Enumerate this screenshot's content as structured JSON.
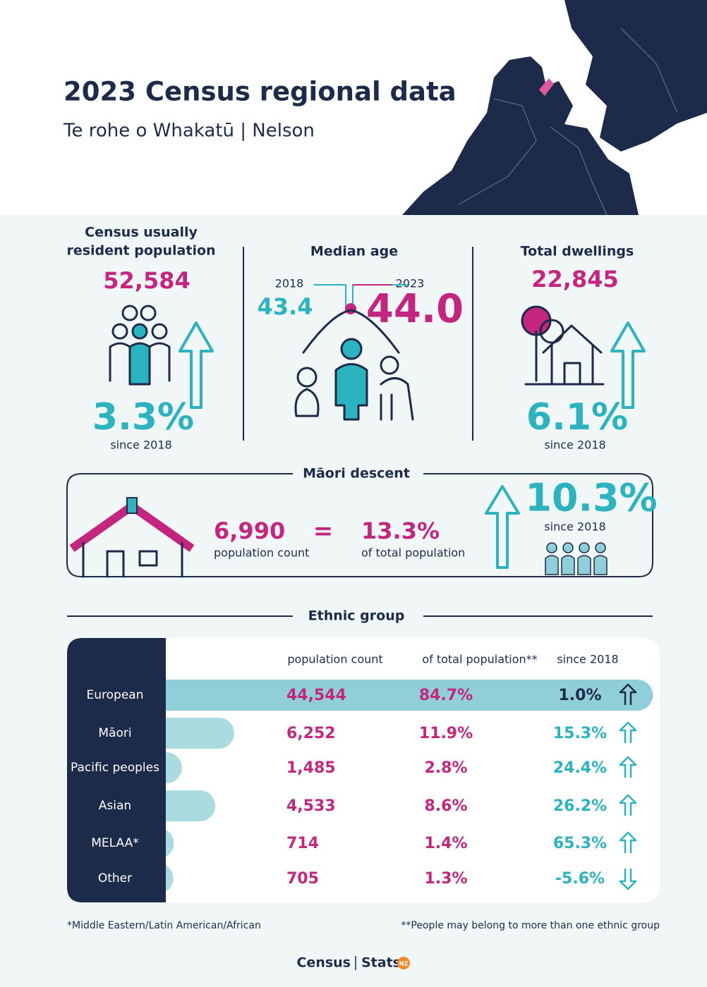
{
  "header": {
    "title": "2023 Census regional data",
    "subtitle": "Te rohe o Whakatū | Nelson"
  },
  "population": {
    "title_lines": [
      "Census usually",
      "resident population"
    ],
    "value": "52,584",
    "change": "3.3%",
    "since": "since 2018"
  },
  "median_age": {
    "title": "Median age",
    "year_prev": "2018",
    "year_curr": "2023",
    "value_prev": "43.4",
    "value_curr": "44.0"
  },
  "dwellings": {
    "title": "Total dwellings",
    "value": "22,845",
    "change": "6.1%",
    "since": "since 2018"
  },
  "maori_descent": {
    "title": "Māori descent",
    "count": "6,990",
    "count_label": "population count",
    "equals": "=",
    "share": "13.3%",
    "share_label": "of total population",
    "change": "10.3%",
    "since": "since 2018"
  },
  "ethnic_group": {
    "title": "Ethnic group",
    "headers": [
      "population count",
      "of total population**",
      "since 2018"
    ],
    "rows": [
      {
        "name": "European",
        "count": "44,544",
        "share": 84.7,
        "share_label": "84.7%",
        "change": "1.0%"
      },
      {
        "name": "Māori",
        "count": "6,252",
        "share": 11.9,
        "share_label": "11.9%",
        "change": "15.3%"
      },
      {
        "name": "Pacific peoples",
        "count": "1,485",
        "share": 2.8,
        "share_label": "2.8%",
        "change": "24.4%"
      },
      {
        "name": "Asian",
        "count": "4,533",
        "share": 8.6,
        "share_label": "8.6%",
        "change": "26.2%"
      },
      {
        "name": "MELAA*",
        "count": "714",
        "share": 1.4,
        "share_label": "1.4%",
        "change": "65.3%"
      },
      {
        "name": "Other",
        "count": "705",
        "share": 1.3,
        "share_label": "1.3%",
        "change": "-5.6%"
      }
    ]
  },
  "footnotes": [
    "*Middle Eastern/Latin American/African",
    "**People may belong to more than one ethnic group"
  ],
  "logo": {
    "census": "Census",
    "stats": "Stats",
    "nz": "NZ"
  }
}
